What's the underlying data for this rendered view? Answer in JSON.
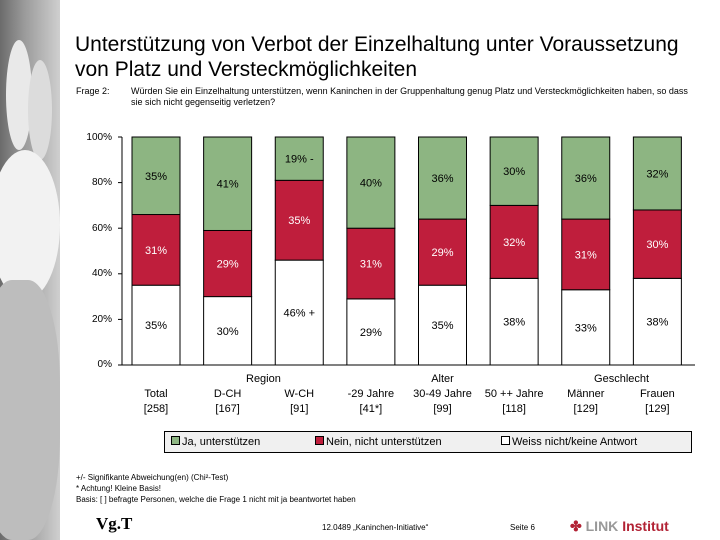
{
  "title": "Unterstützung von Verbot der Einzelhaltung unter Voraussetzung von Platz und Versteckmöglichkeiten",
  "question": {
    "label": "Frage 2:",
    "text": "Würden Sie ein Einzelhaltung unterstützen, wenn Kaninchen in der Gruppenhaltung genug Platz und Versteckmöglichkeiten haben, so dass sie sich nicht gegenseitig verletzen?"
  },
  "axis": {
    "ticks": [
      "100%",
      "80%",
      "60%",
      "40%",
      "20%",
      "0%"
    ]
  },
  "groups": [
    {
      "label": "",
      "first": 0,
      "last": 0
    },
    {
      "label": "Region",
      "first": 1,
      "last": 2
    },
    {
      "label": "Alter",
      "first": 3,
      "last": 5
    },
    {
      "label": "Geschlecht",
      "first": 6,
      "last": 7
    }
  ],
  "legend": {
    "items": [
      {
        "label": "Ja, unterstützen",
        "color": "#8db582"
      },
      {
        "label": "Nein, nicht unterstützen",
        "color": "#bf1e3c"
      },
      {
        "label": "Weiss nicht/keine Antwort",
        "color": "#ffffff"
      }
    ]
  },
  "chart_data": {
    "type": "bar",
    "stacked": true,
    "ylim": [
      0,
      100
    ],
    "categories": [
      "Total",
      "D-CH",
      "W-CH",
      "-29 Jahre",
      "30-49 Jahre",
      "50 ++ Jahre",
      "Männer",
      "Frauen"
    ],
    "bases": [
      "[258]",
      "[167]",
      "[91]",
      "[41*]",
      "[99]",
      "[118]",
      "[129]",
      "[129]"
    ],
    "series": [
      {
        "name": "Weiss nicht/keine Antwort",
        "color": "#ffffff",
        "values": [
          35,
          30,
          46,
          29,
          35,
          38,
          33,
          38
        ],
        "labels": [
          "35%",
          "30%",
          "46% +",
          "29%",
          "35%",
          "38%",
          "33%",
          "38%"
        ]
      },
      {
        "name": "Nein, nicht unterstützen",
        "color": "#bf1e3c",
        "values": [
          31,
          29,
          35,
          31,
          29,
          32,
          31,
          30
        ],
        "labels": [
          "31%",
          "29%",
          "35%",
          "31%",
          "29%",
          "32%",
          "31%",
          "30%"
        ]
      },
      {
        "name": "Ja, unterstützen",
        "color": "#8db582",
        "values": [
          35,
          41,
          19,
          40,
          36,
          30,
          36,
          32
        ],
        "labels": [
          "35%",
          "41%",
          "19% -",
          "40%",
          "36%",
          "30%",
          "36%",
          "32%"
        ]
      }
    ]
  },
  "notes": [
    "+/- Signifikante Abweichung(en) (Chi²-Test)",
    "* Achtung! Kleine Basis!",
    "Basis: [ ] befragte Personen, welche die Frage 1 nicht mit ja beantwortet haben"
  ],
  "footer": {
    "vgt": "Vg.T",
    "reference": "12.0489 „Kaninchen-Initiative“",
    "page": "Seite 6",
    "logo_mark": "✤",
    "logo_link": "LINK",
    "logo_institut": "Institut"
  }
}
